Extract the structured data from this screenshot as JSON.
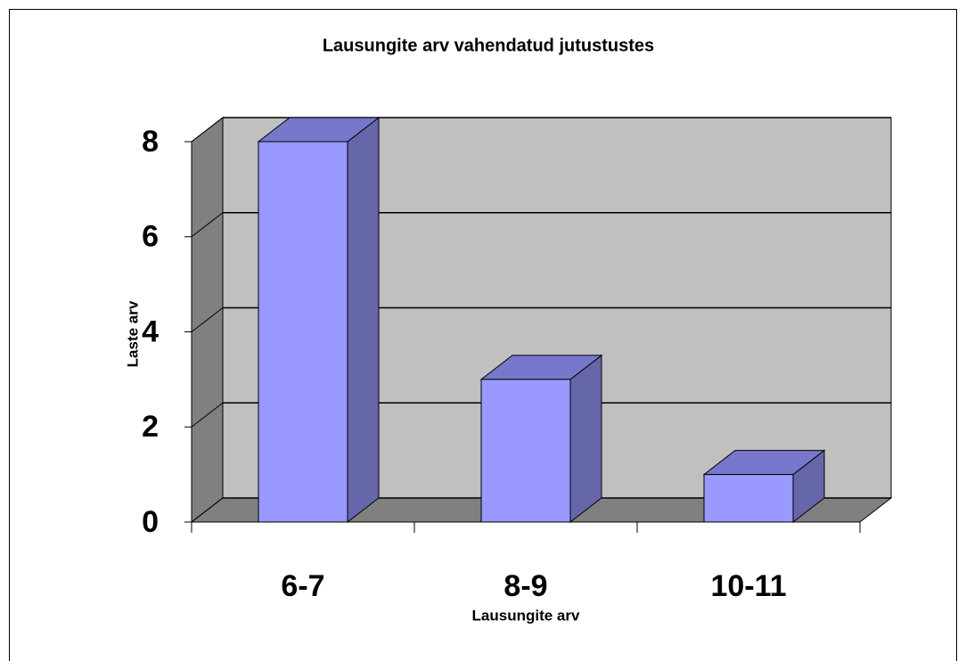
{
  "chart_data": {
    "type": "bar",
    "title": "Lausungite arv vahendatud jutustustes",
    "categories": [
      "6-7",
      "8-9",
      "10-11"
    ],
    "values": [
      8,
      3,
      1
    ],
    "color": "#9999ff",
    "x_label": "Lausungite arv",
    "y_label": "Laste arv",
    "ylim": [
      0,
      8
    ],
    "yticks": [
      0,
      2,
      4,
      6,
      8
    ],
    "grid": true
  }
}
